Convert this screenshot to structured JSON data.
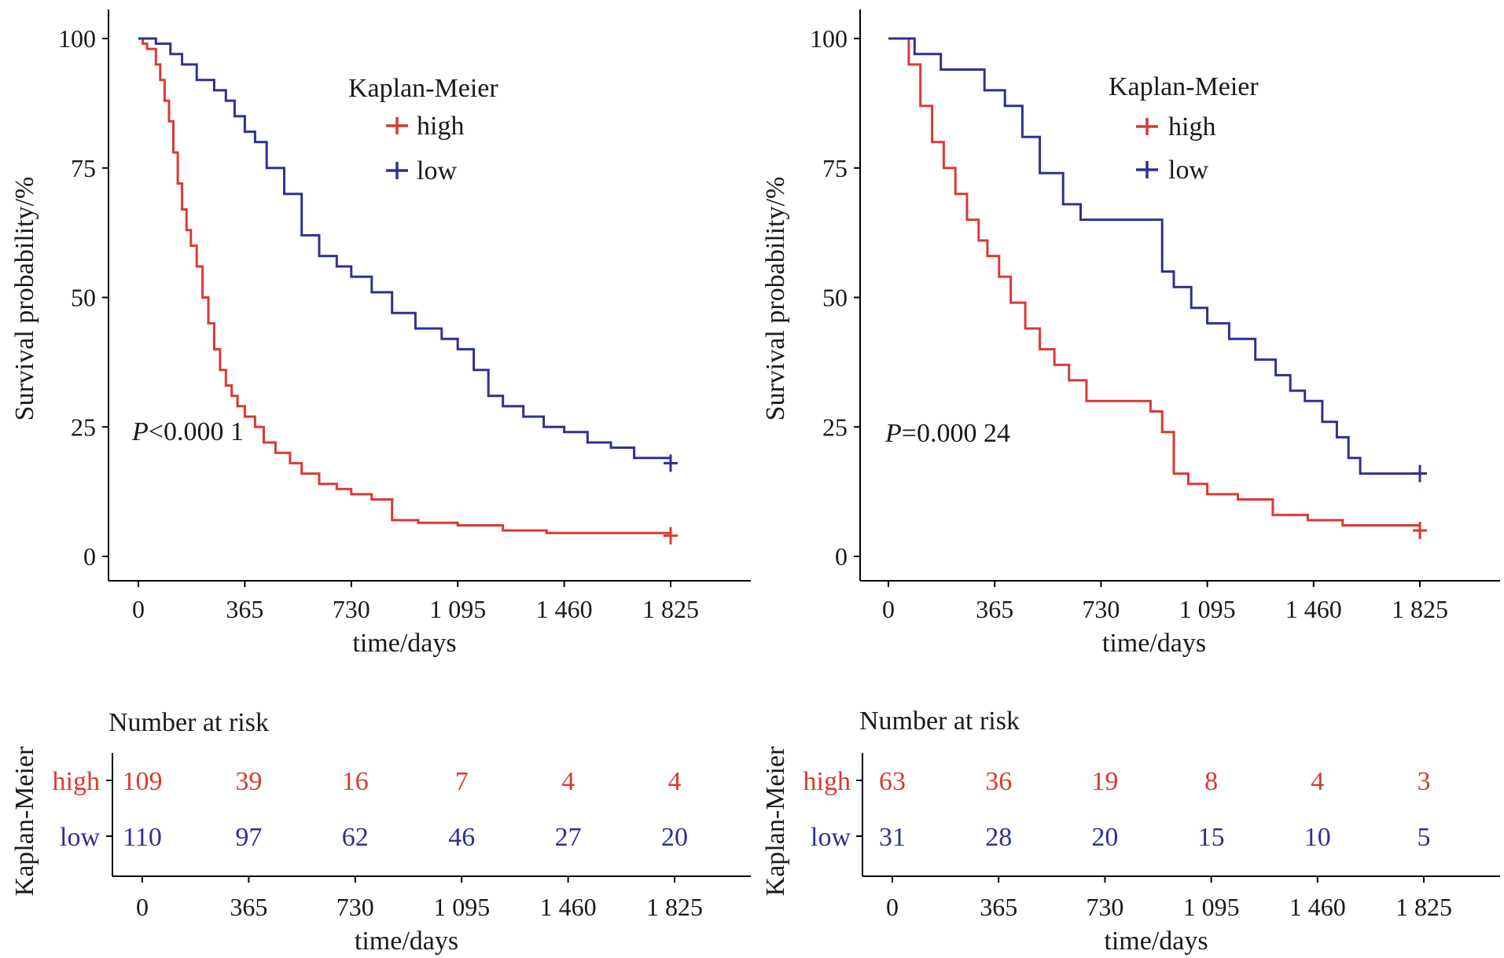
{
  "chart_data": [
    {
      "type": "line",
      "step": true,
      "title": "",
      "xlabel": "time/days",
      "ylabel": "Survival probability/%",
      "xlim": [
        0,
        1825
      ],
      "ylim": [
        0,
        100
      ],
      "xticks": [
        0,
        365,
        730,
        1095,
        1460,
        1825
      ],
      "xtick_labels": [
        "0",
        "365",
        "730",
        "1 095",
        "1 460",
        "1 825"
      ],
      "yticks": [
        0,
        25,
        50,
        75,
        100
      ],
      "ytick_labels": [
        "0",
        "25",
        "50",
        "75",
        "100"
      ],
      "legend_title": "Kaplan-Meier",
      "legend_position": "top-right",
      "annotation": {
        "prefix": "P",
        "text": "<0.000 1"
      },
      "series": [
        {
          "name": "high",
          "color": "#d93a33",
          "x": [
            0,
            15,
            30,
            60,
            75,
            90,
            105,
            120,
            135,
            150,
            165,
            180,
            200,
            220,
            240,
            260,
            280,
            300,
            320,
            340,
            365,
            400,
            430,
            470,
            520,
            560,
            620,
            680,
            730,
            800,
            870,
            960,
            1095,
            1250,
            1400,
            1825
          ],
          "y": [
            100,
            99,
            98,
            95,
            92,
            88,
            84,
            78,
            72,
            67,
            63,
            60,
            56,
            50,
            45,
            40,
            36,
            33,
            31,
            29,
            27,
            25,
            22,
            20,
            18,
            16,
            14,
            13,
            12,
            11,
            7,
            6.5,
            6,
            5,
            4.5,
            4
          ]
        },
        {
          "name": "low",
          "color": "#2e3192",
          "x": [
            0,
            60,
            110,
            150,
            200,
            260,
            300,
            330,
            365,
            400,
            440,
            500,
            560,
            620,
            680,
            730,
            800,
            870,
            950,
            1040,
            1095,
            1150,
            1200,
            1250,
            1320,
            1390,
            1460,
            1540,
            1620,
            1700,
            1825
          ],
          "y": [
            100,
            99,
            97,
            95,
            92,
            90,
            88,
            85,
            82,
            80,
            75,
            70,
            62,
            58,
            56,
            54,
            51,
            47,
            44,
            42,
            40,
            36,
            31,
            29,
            27,
            25,
            24,
            22,
            21,
            19,
            18
          ]
        }
      ],
      "risk_table": {
        "title": "Number at risk",
        "ylabel": "Kaplan-Meier",
        "xlabel": "time/days",
        "rows": [
          {
            "name": "high",
            "color": "#d93a33",
            "values": [
              "109",
              "39",
              "16",
              "7",
              "4",
              "4"
            ]
          },
          {
            "name": "low",
            "color": "#2e3192",
            "values": [
              "110",
              "97",
              "62",
              "46",
              "27",
              "20"
            ]
          }
        ]
      }
    },
    {
      "type": "line",
      "step": true,
      "title": "",
      "xlabel": "time/days",
      "ylabel": "Survival probability/%",
      "xlim": [
        0,
        1825
      ],
      "ylim": [
        0,
        100
      ],
      "xticks": [
        0,
        365,
        730,
        1095,
        1460,
        1825
      ],
      "xtick_labels": [
        "0",
        "365",
        "730",
        "1 095",
        "1 460",
        "1 825"
      ],
      "yticks": [
        0,
        25,
        50,
        75,
        100
      ],
      "ytick_labels": [
        "0",
        "25",
        "50",
        "75",
        "100"
      ],
      "legend_title": "Kaplan-Meier",
      "legend_position": "top-right",
      "annotation": {
        "prefix": "P",
        "text": "=0.000 24"
      },
      "series": [
        {
          "name": "high",
          "color": "#d93a33",
          "x": [
            0,
            70,
            110,
            150,
            190,
            230,
            270,
            310,
            340,
            380,
            420,
            470,
            520,
            570,
            620,
            680,
            900,
            940,
            980,
            1030,
            1095,
            1200,
            1320,
            1440,
            1560,
            1825
          ],
          "y": [
            100,
            95,
            87,
            80,
            75,
            70,
            65,
            61,
            58,
            54,
            49,
            44,
            40,
            37,
            34,
            30,
            28,
            24,
            16,
            14,
            12,
            11,
            8,
            7,
            6,
            5
          ]
        },
        {
          "name": "low",
          "color": "#2e3192",
          "x": [
            0,
            90,
            180,
            330,
            400,
            460,
            520,
            600,
            660,
            940,
            980,
            1040,
            1095,
            1170,
            1260,
            1330,
            1380,
            1430,
            1490,
            1540,
            1580,
            1620,
            1825
          ],
          "y": [
            100,
            97,
            94,
            90,
            87,
            81,
            74,
            68,
            65,
            55,
            52,
            48,
            45,
            42,
            38,
            35,
            32,
            30,
            26,
            23,
            19,
            16,
            16
          ]
        }
      ],
      "risk_table": {
        "title": "Number at risk",
        "ylabel": "Kaplan-Meier",
        "xlabel": "time/days",
        "rows": [
          {
            "name": "high",
            "color": "#d93a33",
            "values": [
              "63",
              "36",
              "19",
              "8",
              "4",
              "3"
            ]
          },
          {
            "name": "low",
            "color": "#2e3192",
            "values": [
              "31",
              "28",
              "20",
              "15",
              "10",
              "5"
            ]
          }
        ]
      }
    }
  ]
}
